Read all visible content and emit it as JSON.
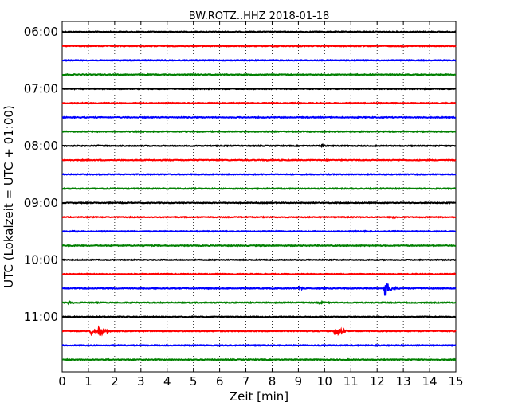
{
  "chart_data": {
    "type": "line",
    "title": "BW.ROTZ..HHZ 2018-01-18",
    "xlabel": "Zeit  [min]",
    "ylabel": "UTC (Lokalzeit = UTC + 01:00)",
    "xlim": [
      0,
      15
    ],
    "x_ticks": [
      "0",
      "1",
      "2",
      "3",
      "4",
      "5",
      "6",
      "7",
      "8",
      "9",
      "10",
      "11",
      "12",
      "13",
      "14",
      "15"
    ],
    "y_ticks": [
      "06:00",
      "07:00",
      "08:00",
      "09:00",
      "10:00",
      "11:00"
    ],
    "grid": "vertical-dotted",
    "minutes_per_trace": 15,
    "trace_colors": [
      "#000000",
      "#ff0000",
      "#0000ff",
      "#008000"
    ],
    "series": [
      {
        "start": "06:00",
        "events": []
      },
      {
        "start": "06:15",
        "events": [
          {
            "t": 8.1,
            "amp": 0.2
          },
          {
            "t": 10.0,
            "amp": 0.2
          },
          {
            "t": 11.4,
            "amp": 0.15
          }
        ]
      },
      {
        "start": "06:30",
        "events": []
      },
      {
        "start": "06:45",
        "events": []
      },
      {
        "start": "07:00",
        "events": []
      },
      {
        "start": "07:15",
        "events": []
      },
      {
        "start": "07:30",
        "events": []
      },
      {
        "start": "07:45",
        "events": []
      },
      {
        "start": "08:00",
        "events": [
          {
            "t": 1.3,
            "amp": 0.2
          },
          {
            "t": 9.9,
            "amp": 0.3
          }
        ]
      },
      {
        "start": "08:15",
        "events": [
          {
            "t": 7.8,
            "amp": 0.15
          }
        ]
      },
      {
        "start": "08:30",
        "events": []
      },
      {
        "start": "08:45",
        "events": []
      },
      {
        "start": "09:00",
        "events": []
      },
      {
        "start": "09:15",
        "events": [
          {
            "t": 12.6,
            "amp": 0.25
          }
        ]
      },
      {
        "start": "09:30",
        "events": [
          {
            "t": 0.4,
            "amp": 0.25
          }
        ]
      },
      {
        "start": "09:45",
        "events": []
      },
      {
        "start": "10:00",
        "events": []
      },
      {
        "start": "10:15",
        "events": []
      },
      {
        "start": "10:30",
        "events": [
          {
            "t": 9.0,
            "amp": 0.3
          },
          {
            "t": 12.3,
            "amp": 1.6
          }
        ]
      },
      {
        "start": "10:45",
        "events": [
          {
            "t": 0.25,
            "amp": 0.35
          },
          {
            "t": 9.8,
            "amp": 0.3
          }
        ]
      },
      {
        "start": "11:00",
        "events": []
      },
      {
        "start": "11:15",
        "events": [
          {
            "t": 1.1,
            "amp": 0.9
          },
          {
            "t": 1.4,
            "amp": 1.1
          },
          {
            "t": 10.4,
            "amp": 1.3
          }
        ]
      },
      {
        "start": "11:30",
        "events": []
      },
      {
        "start": "11:45",
        "events": []
      }
    ]
  }
}
